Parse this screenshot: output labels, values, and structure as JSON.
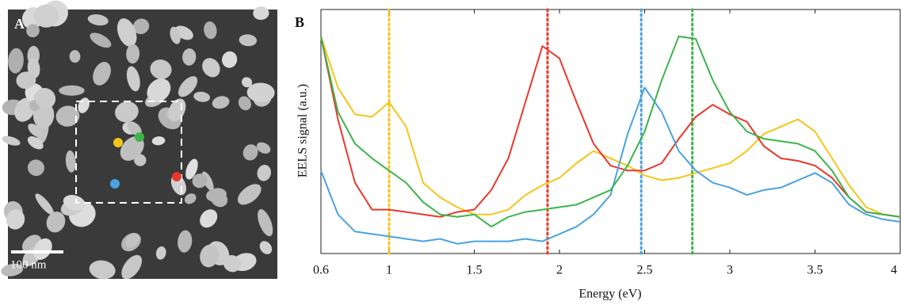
{
  "panel_a": {
    "label": "A",
    "scale_bar": "100 nm"
  },
  "chart_data": {
    "type": "line",
    "panel_label": "B",
    "x_label": "Energy (eV)",
    "y_label": "EELS signal (a.u.)",
    "x": [
      0.6,
      0.7,
      0.8,
      0.9,
      1.0,
      1.1,
      1.2,
      1.3,
      1.4,
      1.5,
      1.6,
      1.7,
      1.8,
      1.9,
      2.0,
      2.1,
      2.2,
      2.3,
      2.4,
      2.5,
      2.6,
      2.7,
      2.8,
      2.9,
      3.0,
      3.1,
      3.2,
      3.3,
      3.4,
      3.5,
      3.6,
      3.7,
      3.8,
      3.9,
      4.0
    ],
    "series": [
      {
        "color": "#f5c518",
        "values": [
          0.89,
          0.68,
          0.57,
          0.56,
          0.62,
          0.52,
          0.29,
          0.23,
          0.19,
          0.16,
          0.16,
          0.18,
          0.24,
          0.28,
          0.31,
          0.37,
          0.42,
          0.39,
          0.36,
          0.32,
          0.3,
          0.31,
          0.33,
          0.35,
          0.37,
          0.42,
          0.49,
          0.52,
          0.55,
          0.5,
          0.39,
          0.28,
          0.19,
          0.16,
          0.15
        ]
      },
      {
        "color": "#e8382b",
        "values": [
          0.89,
          0.55,
          0.29,
          0.18,
          0.18,
          0.17,
          0.16,
          0.15,
          0.17,
          0.18,
          0.26,
          0.39,
          0.62,
          0.85,
          0.8,
          0.62,
          0.45,
          0.36,
          0.34,
          0.34,
          0.37,
          0.47,
          0.56,
          0.61,
          0.57,
          0.54,
          0.44,
          0.39,
          0.38,
          0.36,
          0.31,
          0.23,
          0.17,
          0.16,
          0.15
        ]
      },
      {
        "color": "#4aa3df",
        "values": [
          0.34,
          0.16,
          0.09,
          0.08,
          0.07,
          0.06,
          0.05,
          0.06,
          0.04,
          0.05,
          0.05,
          0.05,
          0.06,
          0.05,
          0.08,
          0.11,
          0.16,
          0.24,
          0.49,
          0.68,
          0.58,
          0.42,
          0.34,
          0.29,
          0.27,
          0.24,
          0.26,
          0.27,
          0.3,
          0.33,
          0.29,
          0.2,
          0.16,
          0.14,
          0.13
        ]
      },
      {
        "color": "#3cb54a",
        "values": [
          0.89,
          0.58,
          0.45,
          0.39,
          0.34,
          0.29,
          0.21,
          0.16,
          0.15,
          0.16,
          0.11,
          0.15,
          0.17,
          0.18,
          0.19,
          0.2,
          0.23,
          0.26,
          0.36,
          0.5,
          0.71,
          0.89,
          0.88,
          0.71,
          0.58,
          0.5,
          0.47,
          0.46,
          0.45,
          0.42,
          0.34,
          0.23,
          0.17,
          0.16,
          0.15
        ]
      }
    ],
    "markers": [
      {
        "x": 1.0,
        "color": "#f5c518"
      },
      {
        "x": 1.93,
        "color": "#e8382b"
      },
      {
        "x": 2.48,
        "color": "#4aa3df"
      },
      {
        "x": 2.78,
        "color": "#3cb54a"
      }
    ],
    "xlim": [
      0.6,
      4
    ],
    "xticks": [
      0.6,
      1,
      1.5,
      2,
      2.5,
      3,
      3.5,
      4
    ],
    "ylim": [
      0,
      1
    ]
  }
}
